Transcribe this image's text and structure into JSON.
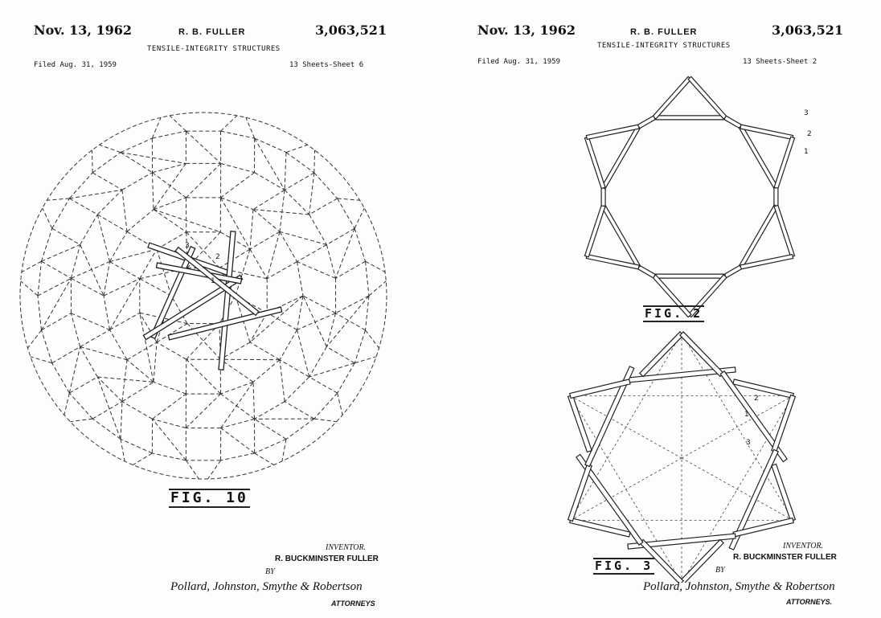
{
  "left_sheet": {
    "date": "Nov. 13, 1962",
    "inventor_header": "R. B. FULLER",
    "patent_number": "3,063,521",
    "title": "TENSILE-INTEGRITY STRUCTURES",
    "filed": "Filed Aug. 31, 1959",
    "sheet": "13 Sheets-Sheet 6",
    "figure_label": "FIG. 10",
    "ref_labels": [
      "3",
      "2",
      "1"
    ],
    "inventor_word": "INVENTOR.",
    "inventor_name": "R. BUCKMINSTER FULLER",
    "by": "BY",
    "signature": "Pollard, Johnston, Smythe & Robertson",
    "attorneys": "ATTORNEYS"
  },
  "right_sheet": {
    "date": "Nov. 13, 1962",
    "inventor_header": "R. B. FULLER",
    "patent_number": "3,063,521",
    "title": "TENSILE-INTEGRITY STRUCTURES",
    "filed": "Filed Aug. 31, 1959",
    "sheet": "13 Sheets-Sheet 2",
    "figure_label_top": "FIG. 2",
    "figure_label_bottom": "FIG. 3",
    "ref_labels_top": [
      "3",
      "2",
      "1"
    ],
    "ref_labels_bottom": [
      "2",
      "1",
      "3"
    ],
    "inventor_word": "INVENTOR.",
    "inventor_name": "R. BUCKMINSTER FULLER",
    "by": "BY",
    "signature": "Pollard, Johnston, Smythe & Robertson",
    "attorneys": "ATTORNEYS."
  }
}
